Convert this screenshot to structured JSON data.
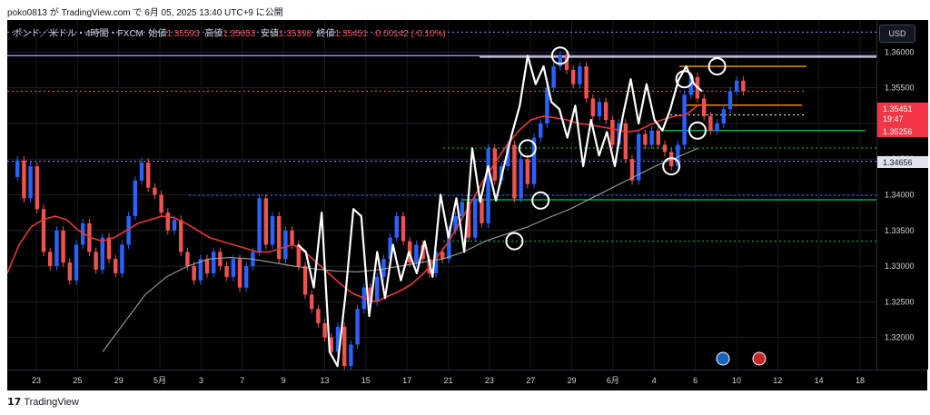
{
  "header": {
    "publisher_line": "poko0813 が TradingView.com で 6月 05, 2025 13:40 UTC+9 に公開"
  },
  "legend": {
    "symbol": "ポンド／米ドル・4時間・FXCM",
    "open_label": "始値",
    "open_value": "1.35593",
    "high_label": "高値",
    "high_value": "1.35653",
    "low_label": "安値",
    "low_value": "1.35398",
    "close_label": "終値",
    "close_value": "1.35451",
    "change": "-0.00142 (-0.10%)"
  },
  "currency_button": "USD",
  "price_badges": {
    "current_price": "1.35451",
    "countdown": "19:47",
    "level_1": "1.35256",
    "level_2": "1.34656"
  },
  "footer": {
    "brand": "TradingView"
  },
  "colors": {
    "background": "#000000",
    "up_candle": "#2962ff",
    "down_candle": "#ef5350",
    "ma_short": "#e53935",
    "ma_long": "#9e9e9e",
    "zigzag": "#ffffff",
    "resistance_line": "#b388ff",
    "support_green": "#00c853",
    "level_orange": "#ff9800"
  },
  "chart_data": {
    "type": "candlestick",
    "symbol": "GBPUSD 4H FXCM",
    "y_ticks": [
      "1.36000",
      "1.35500",
      "1.35000",
      "1.34500",
      "1.34000",
      "1.33500",
      "1.33000",
      "1.32500",
      "1.32000"
    ],
    "x_ticks": [
      "23",
      "25",
      "29",
      "5月",
      "3",
      "7",
      "9",
      "13",
      "15",
      "17",
      "21",
      "23",
      "27",
      "29",
      "6月",
      "4",
      "6",
      "10",
      "12",
      "14",
      "18"
    ],
    "ylim": [
      1.3155,
      1.3645
    ],
    "price_series": [
      1.3425,
      1.3448,
      1.3395,
      1.344,
      1.338,
      1.332,
      1.33,
      1.335,
      1.3305,
      1.328,
      1.333,
      1.336,
      1.332,
      1.3295,
      1.334,
      1.331,
      1.329,
      1.333,
      1.337,
      1.342,
      1.3445,
      1.341,
      1.34,
      1.3375,
      1.335,
      1.3365,
      1.332,
      1.33,
      1.328,
      1.331,
      1.329,
      1.332,
      1.33,
      1.3285,
      1.331,
      1.327,
      1.33,
      1.332,
      1.3395,
      1.333,
      1.337,
      1.331,
      1.335,
      1.333,
      1.33,
      1.326,
      1.324,
      1.322,
      1.32,
      1.318,
      1.3215,
      1.316,
      1.319,
      1.324,
      1.327,
      1.325,
      1.3285,
      1.331,
      1.334,
      1.337,
      1.3335,
      1.3305,
      1.333,
      1.331,
      1.329,
      1.332,
      1.331,
      1.335,
      1.337,
      1.339,
      1.334,
      1.3395,
      1.336,
      1.3465,
      1.342,
      1.344,
      1.347,
      1.3395,
      1.345,
      1.3415,
      1.348,
      1.35,
      1.355,
      1.358,
      1.3595,
      1.3575,
      1.3555,
      1.358,
      1.3535,
      1.351,
      1.353,
      1.3505,
      1.347,
      1.35,
      1.345,
      1.342,
      1.3485,
      1.347,
      1.349,
      1.347,
      1.346,
      1.344,
      1.347,
      1.354,
      1.3565,
      1.3535,
      1.351,
      1.349,
      1.35,
      1.352,
      1.3545,
      1.356,
      1.3545
    ],
    "ma_short": [
      1.329,
      1.333,
      1.3355,
      1.3365,
      1.337,
      1.3365,
      1.335,
      1.334,
      1.3335,
      1.334,
      1.335,
      1.336,
      1.3365,
      1.337,
      1.3368,
      1.336,
      1.335,
      1.334,
      1.3335,
      1.333,
      1.3325,
      1.332,
      1.332,
      1.3325,
      1.333,
      1.332,
      1.3305,
      1.329,
      1.3275,
      1.3262,
      1.3255,
      1.325,
      1.3258,
      1.3265,
      1.3275,
      1.329,
      1.331,
      1.3332,
      1.336,
      1.339,
      1.342,
      1.3445,
      1.347,
      1.349,
      1.3505,
      1.351,
      1.3508,
      1.3505,
      1.35,
      1.3498,
      1.3495,
      1.3492,
      1.3488,
      1.349,
      1.3498,
      1.3505,
      1.351,
      1.3512,
      1.3525
    ],
    "ma_long": [
      1.318,
      1.322,
      1.326,
      1.3285,
      1.33,
      1.331,
      1.3312,
      1.331,
      1.3305,
      1.33,
      1.3296,
      1.3293,
      1.3292,
      1.3295,
      1.33,
      1.3305,
      1.331,
      1.332,
      1.3335,
      1.3345,
      1.3355,
      1.3368,
      1.338,
      1.3395,
      1.341,
      1.3425,
      1.344,
      1.3452,
      1.3465
    ],
    "zigzag_points": [
      1.333,
      1.332,
      1.327,
      1.3375,
      1.318,
      1.316,
      1.326,
      1.338,
      1.337,
      1.323,
      1.332,
      1.3255,
      1.333,
      1.328,
      1.332,
      1.329,
      1.3335,
      1.3285,
      1.34,
      1.334,
      1.3395,
      1.332,
      1.3465,
      1.339,
      1.344,
      1.3392,
      1.344,
      1.3485,
      1.3525,
      1.3595,
      1.3555,
      1.358,
      1.353,
      1.352,
      1.348,
      1.3525,
      1.344,
      1.3505,
      1.3455,
      1.3488,
      1.344,
      1.351,
      1.3562,
      1.35,
      1.3555,
      1.3505,
      1.349,
      1.352,
      1.356,
      1.358,
      1.3555,
      1.3545
    ],
    "horizontal_levels": [
      {
        "price": 1.3595,
        "style": "solid-purple"
      },
      {
        "price": 1.3593,
        "style": "solid-white"
      },
      {
        "price": 1.358,
        "style": "solid-orange"
      },
      {
        "price": 1.35451,
        "style": "dotted-red"
      },
      {
        "price": 1.35256,
        "style": "solid-orange"
      },
      {
        "price": 1.3512,
        "style": "dotted-white"
      },
      {
        "price": 1.349,
        "style": "solid-green"
      },
      {
        "price": 1.34656,
        "style": "dotted-green"
      },
      {
        "price": 1.3447,
        "style": "dotted-purple"
      },
      {
        "price": 1.3399,
        "style": "dotted-blue"
      },
      {
        "price": 1.3393,
        "style": "solid-green"
      },
      {
        "price": 1.3335,
        "style": "dotted-green"
      },
      {
        "price": 1.3628,
        "style": "dotted-purple"
      }
    ],
    "circled_points": [
      {
        "bar_index": 84,
        "price": 1.3595
      },
      {
        "bar_index": 79,
        "price": 1.3465
      },
      {
        "bar_index": 81,
        "price": 1.3392
      },
      {
        "bar_index": 77,
        "price": 1.3335
      },
      {
        "bar_index": 101,
        "price": 1.344
      },
      {
        "bar_index": 103,
        "price": 1.3562
      },
      {
        "bar_index": 105,
        "price": 1.349
      },
      {
        "bar_index": 108,
        "price": 1.358
      }
    ],
    "event_flags": [
      "us-flag",
      "uk-flag"
    ]
  }
}
